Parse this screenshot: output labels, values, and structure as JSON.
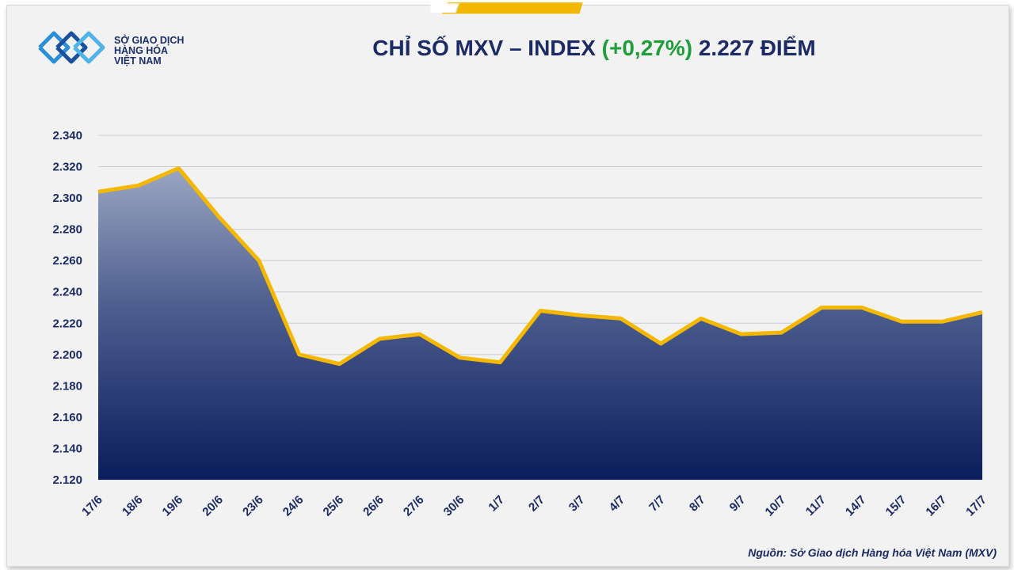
{
  "header": {
    "logo_lines": [
      "SỞ GIAO DỊCH",
      "HÀNG HÓA",
      "VIỆT NAM"
    ],
    "title_prefix": "CHỈ SỐ MXV – INDEX ",
    "title_change": "(+0,27%)",
    "title_suffix": " 2.227 ĐIỂM"
  },
  "colors": {
    "banner": "#f0b800",
    "title_text": "#1c2b63",
    "change_text": "#1e9e3a",
    "line": "#f5b800",
    "area_top": "#9aa6c2",
    "area_bottom": "#0a1d5c"
  },
  "chart_data": {
    "type": "area",
    "categories": [
      "17/6",
      "18/6",
      "19/6",
      "20/6",
      "23/6",
      "24/6",
      "25/6",
      "26/6",
      "27/6",
      "30/6",
      "1/7",
      "2/7",
      "3/7",
      "4/7",
      "7/7",
      "8/7",
      "9/7",
      "10/7",
      "11/7",
      "14/7",
      "15/7",
      "16/7",
      "17/7"
    ],
    "values": [
      2304,
      2308,
      2319,
      2288,
      2260,
      2200,
      2194,
      2210,
      2213,
      2198,
      2195,
      2228,
      2225,
      2223,
      2207,
      2223,
      2213,
      2214,
      2230,
      2230,
      2221,
      2221,
      2227
    ],
    "ylim": [
      2120,
      2340
    ],
    "yticks": [
      "2.120",
      "2.140",
      "2.160",
      "2.180",
      "2.200",
      "2.220",
      "2.240",
      "2.260",
      "2.280",
      "2.300",
      "2.320",
      "2.340"
    ],
    "grid": true
  },
  "source_text": "Nguồn: Sở Giao dịch Hàng hóa Việt Nam (MXV)"
}
